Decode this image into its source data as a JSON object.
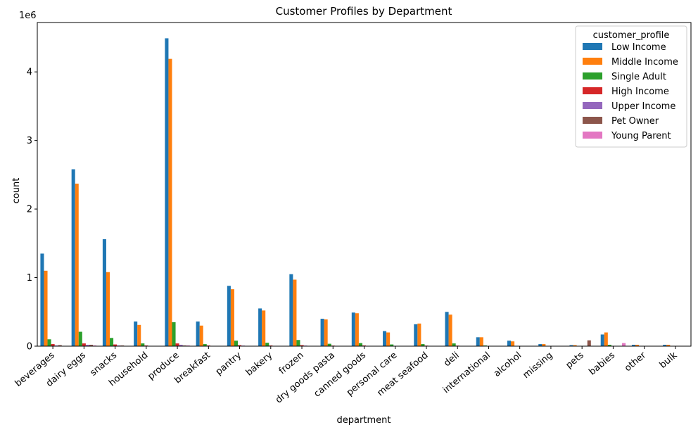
{
  "chart_data": {
    "type": "bar",
    "title": "Customer Profiles by Department",
    "xlabel": "department",
    "ylabel": "count",
    "scale_label": "1e6",
    "ylim": [
      0,
      4.72
    ],
    "yticks": [
      0,
      1,
      2,
      3,
      4
    ],
    "categories": [
      "beverages",
      "dairy eggs",
      "snacks",
      "household",
      "produce",
      "breakfast",
      "pantry",
      "bakery",
      "frozen",
      "dry goods pasta",
      "canned goods",
      "personal care",
      "meat seafood",
      "deli",
      "international",
      "alcohol",
      "missing",
      "pets",
      "babies",
      "other",
      "bulk"
    ],
    "legend": {
      "title": "customer_profile",
      "position": "top-right"
    },
    "series": [
      {
        "name": "Low Income",
        "color": "#1f77b4",
        "values": [
          1.35,
          2.58,
          1.56,
          0.36,
          4.49,
          0.36,
          0.88,
          0.55,
          1.05,
          0.4,
          0.49,
          0.22,
          0.32,
          0.5,
          0.13,
          0.08,
          0.03,
          0.015,
          0.17,
          0.02,
          0.02
        ]
      },
      {
        "name": "Middle Income",
        "color": "#ff7f0e",
        "values": [
          1.1,
          2.37,
          1.08,
          0.31,
          4.19,
          0.3,
          0.83,
          0.52,
          0.97,
          0.39,
          0.48,
          0.2,
          0.33,
          0.46,
          0.13,
          0.07,
          0.03,
          0.015,
          0.2,
          0.02,
          0.02
        ]
      },
      {
        "name": "Single Adult",
        "color": "#2ca02c",
        "values": [
          0.1,
          0.21,
          0.12,
          0.04,
          0.35,
          0.03,
          0.08,
          0.05,
          0.09,
          0.035,
          0.045,
          0.025,
          0.03,
          0.04,
          0.01,
          0.005,
          0.002,
          0.002,
          0.02,
          0.002,
          0.002
        ]
      },
      {
        "name": "High Income",
        "color": "#d62728",
        "values": [
          0.03,
          0.04,
          0.025,
          0.01,
          0.04,
          0.01,
          0.015,
          0.01,
          0.015,
          0.008,
          0.01,
          0.005,
          0.008,
          0.008,
          0.003,
          0.002,
          0.001,
          0.001,
          0.004,
          0.001,
          0.001
        ]
      },
      {
        "name": "Upper Income",
        "color": "#9467bd",
        "values": [
          0.01,
          0.02,
          0.01,
          0.005,
          0.02,
          0.005,
          0.008,
          0.005,
          0.008,
          0.004,
          0.005,
          0.003,
          0.004,
          0.004,
          0.001,
          0.001,
          0.0005,
          0.0005,
          0.002,
          0.0005,
          0.0005
        ]
      },
      {
        "name": "Pet Owner",
        "color": "#8c564b",
        "values": [
          0.015,
          0.02,
          0.01,
          0.005,
          0.01,
          0.005,
          0.005,
          0.005,
          0.005,
          0.003,
          0.003,
          0.002,
          0.003,
          0.003,
          0.001,
          0.001,
          0.0005,
          0.085,
          0.001,
          0.0005,
          0.0005
        ]
      },
      {
        "name": "Young Parent",
        "color": "#e377c2",
        "values": [
          0.005,
          0.01,
          0.005,
          0.003,
          0.01,
          0.003,
          0.004,
          0.003,
          0.005,
          0.002,
          0.002,
          0.002,
          0.002,
          0.002,
          0.001,
          0.0005,
          0.0005,
          0.0005,
          0.045,
          0.0005,
          0.0005
        ]
      }
    ]
  }
}
